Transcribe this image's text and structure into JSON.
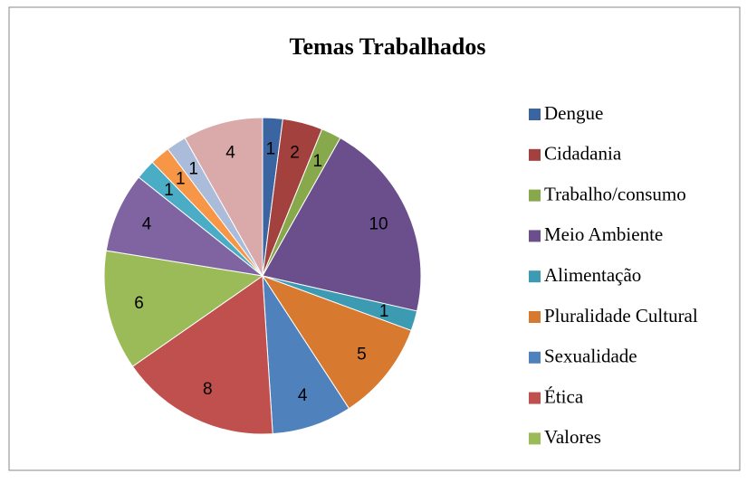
{
  "chart_data": {
    "type": "pie",
    "title": "Temas Trabalhados",
    "categories": [
      "Dengue",
      "Cidadania",
      "Trabalho/consumo",
      "Meio Ambiente",
      "Alimentação",
      "Pluralidade Cultural",
      "Sexualidade",
      "Ética",
      "Valores",
      null,
      null,
      null,
      null,
      null
    ],
    "values": [
      1,
      2,
      1,
      10,
      1,
      5,
      4,
      8,
      6,
      4,
      1,
      1,
      1,
      4
    ],
    "colors": [
      "#3b65a0",
      "#a3413e",
      "#87a84b",
      "#6a4f8c",
      "#3c9bb2",
      "#d7792f",
      "#4f81bd",
      "#c0504d",
      "#9bbb59",
      "#8064a2",
      "#4bacc6",
      "#f79646",
      "#aabcda",
      "#d9aaa9"
    ],
    "legend": "right"
  }
}
